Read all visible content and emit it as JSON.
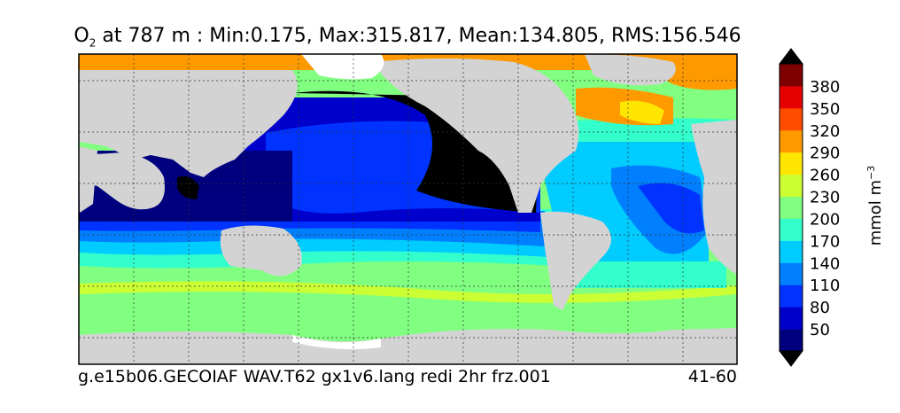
{
  "title": {
    "species": "O",
    "species_sub": "2",
    "depth_text": " at 787 m : ",
    "min": "Min:0.175",
    "max": "Max:315.817",
    "mean": "Mean:134.805",
    "rms": "RMS:156.546"
  },
  "footer": {
    "run_name": "g.e15b06.GECOIAF WAV.T62 gx1v6.lang redi 2hr frz.001",
    "years": "41-60"
  },
  "colorbar": {
    "label": "mmol m",
    "label_exp": "−3",
    "ticks": [
      "50",
      "80",
      "110",
      "140",
      "170",
      "200",
      "230",
      "260",
      "290",
      "320",
      "350",
      "380"
    ],
    "colors": [
      "#00007f",
      "#0000cc",
      "#0033ff",
      "#0080ff",
      "#00ccff",
      "#33ffcc",
      "#80ff80",
      "#ccff33",
      "#ffe600",
      "#ff9900",
      "#ff4d00",
      "#e60000",
      "#7f0000"
    ],
    "under_color": "#000000"
  },
  "map": {
    "land_color": "#d3d3d3",
    "ice_color": "#ffffff",
    "anoxic_color": "#000000"
  }
}
